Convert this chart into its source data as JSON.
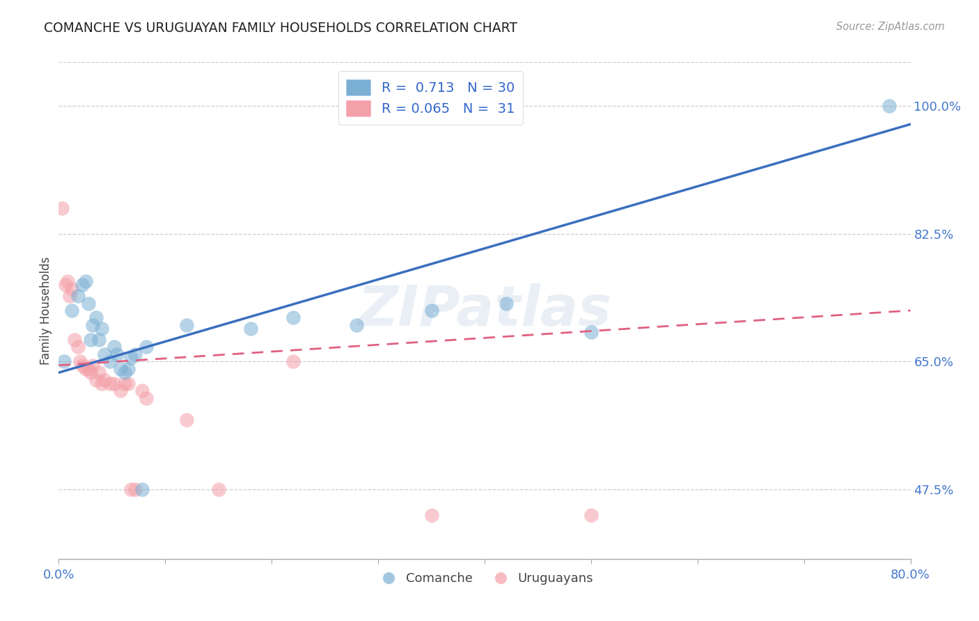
{
  "title": "COMANCHE VS URUGUAYAN FAMILY HOUSEHOLDS CORRELATION CHART",
  "source": "Source: ZipAtlas.com",
  "ylabel": "Family Households",
  "ytick_labels": [
    "47.5%",
    "65.0%",
    "82.5%",
    "100.0%"
  ],
  "ytick_values": [
    0.475,
    0.65,
    0.825,
    1.0
  ],
  "xlim": [
    0.0,
    0.8
  ],
  "ylim": [
    0.38,
    1.06
  ],
  "legend_blue_R": "0.713",
  "legend_blue_N": "30",
  "legend_pink_R": "0.065",
  "legend_pink_N": "31",
  "blue_color": "#7BAFD4",
  "pink_color": "#F4A0A8",
  "line_blue": "#3A6FBF",
  "line_pink": "#E06080",
  "watermark": "ZIPatlas",
  "comanche_x": [
    0.005,
    0.012,
    0.018,
    0.022,
    0.025,
    0.028,
    0.03,
    0.032,
    0.035,
    0.038,
    0.04,
    0.043,
    0.048,
    0.052,
    0.055,
    0.058,
    0.062,
    0.065,
    0.068,
    0.072,
    0.078,
    0.082,
    0.12,
    0.18,
    0.22,
    0.28,
    0.35,
    0.42,
    0.5,
    0.78
  ],
  "comanche_y": [
    0.65,
    0.72,
    0.74,
    0.755,
    0.76,
    0.73,
    0.68,
    0.7,
    0.71,
    0.68,
    0.695,
    0.66,
    0.65,
    0.67,
    0.66,
    0.64,
    0.635,
    0.64,
    0.655,
    0.66,
    0.475,
    0.67,
    0.7,
    0.695,
    0.71,
    0.7,
    0.72,
    0.73,
    0.69,
    1.0
  ],
  "uruguayan_x": [
    0.003,
    0.006,
    0.008,
    0.01,
    0.012,
    0.015,
    0.018,
    0.02,
    0.022,
    0.025,
    0.028,
    0.03,
    0.032,
    0.035,
    0.038,
    0.04,
    0.043,
    0.048,
    0.052,
    0.058,
    0.062,
    0.065,
    0.068,
    0.072,
    0.078,
    0.082,
    0.12,
    0.15,
    0.22,
    0.35,
    0.5
  ],
  "uruguayan_y": [
    0.86,
    0.755,
    0.76,
    0.74,
    0.75,
    0.68,
    0.67,
    0.65,
    0.645,
    0.64,
    0.64,
    0.635,
    0.645,
    0.625,
    0.635,
    0.62,
    0.625,
    0.62,
    0.62,
    0.61,
    0.62,
    0.62,
    0.475,
    0.475,
    0.61,
    0.6,
    0.57,
    0.475,
    0.65,
    0.44,
    0.44
  ],
  "blue_line_x": [
    0.0,
    0.8
  ],
  "blue_line_y": [
    0.635,
    0.975
  ],
  "pink_line_x": [
    0.0,
    0.8
  ],
  "pink_line_y": [
    0.645,
    0.72
  ]
}
